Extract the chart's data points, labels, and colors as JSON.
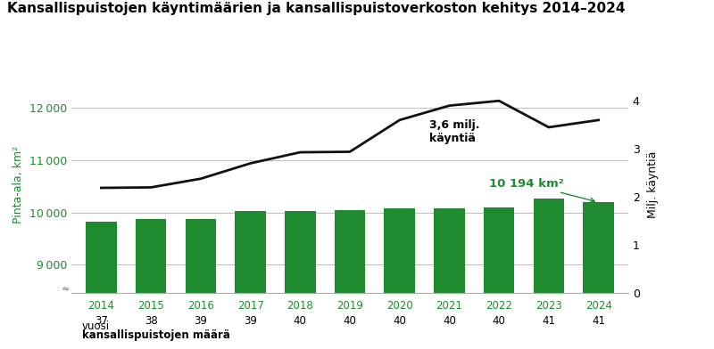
{
  "title": "Kansallispuistojen käyntimäärien ja kansallispuistoverkoston kehitys 2014–2024",
  "years": [
    2014,
    2015,
    2016,
    2017,
    2018,
    2019,
    2020,
    2021,
    2022,
    2023,
    2024
  ],
  "park_counts": [
    37,
    38,
    39,
    39,
    40,
    40,
    40,
    40,
    40,
    41,
    41
  ],
  "area_km2": [
    9820,
    9870,
    9880,
    10020,
    10030,
    10050,
    10070,
    10080,
    10100,
    10270,
    10194
  ],
  "visitors_milj": [
    2.19,
    2.2,
    2.38,
    2.7,
    2.93,
    2.94,
    3.6,
    3.9,
    4.0,
    3.45,
    3.6
  ],
  "bar_color": "#1e8c2e",
  "line_color": "#111111",
  "left_axis_color": "#1e8c2e",
  "ylabel_left": "Pinta-ala, km²",
  "ylabel_right": "Milj. käyntiä",
  "annotation_visitors": "3,6 milj.\nkäyntiä",
  "annotation_area": "10 194 km²",
  "ylim_left": [
    8450,
    12600
  ],
  "ylim_right": [
    0,
    4.5
  ],
  "yticks_left": [
    9000,
    10000,
    11000,
    12000
  ],
  "yticks_right": [
    0,
    1,
    2,
    3,
    4
  ],
  "bg_color": "#ffffff",
  "grid_color": "#c0c0c0",
  "bar_bottom": 8450
}
